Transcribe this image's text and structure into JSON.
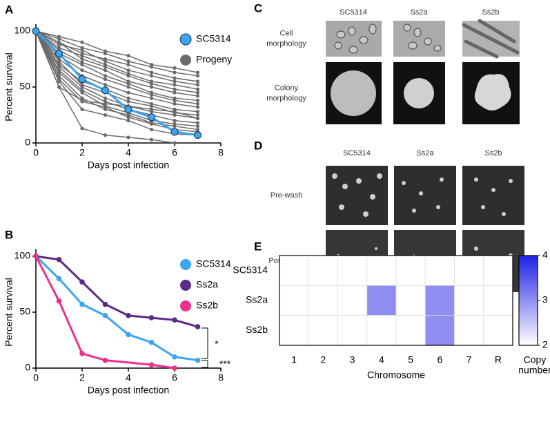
{
  "chart_data": [
    {
      "type": "line",
      "label": "A",
      "ylabel": "Percent survival",
      "xlabel": "Days post infection",
      "x": [
        0,
        1,
        2,
        3,
        4,
        5,
        6,
        7
      ],
      "xlim": [
        0,
        8
      ],
      "xticks": [
        0,
        2,
        4,
        6,
        8
      ],
      "ylim": [
        0,
        100
      ],
      "yticks": [
        0,
        50,
        100
      ],
      "series": [
        {
          "name": "Progeny",
          "color": "#6b6b6b",
          "values": [
            [
              100,
              95,
              90,
              82,
              78,
              70,
              67,
              63
            ],
            [
              100,
              93,
              85,
              80,
              73,
              68,
              63,
              60
            ],
            [
              100,
              90,
              80,
              75,
              70,
              63,
              58,
              55
            ],
            [
              100,
              88,
              83,
              73,
              65,
              60,
              55,
              52
            ],
            [
              100,
              85,
              78,
              70,
              62,
              55,
              52,
              48
            ],
            [
              100,
              90,
              75,
              68,
              60,
              53,
              48,
              45
            ],
            [
              100,
              83,
              72,
              65,
              55,
              50,
              45,
              42
            ],
            [
              100,
              80,
              70,
              60,
              53,
              45,
              40,
              38
            ],
            [
              100,
              78,
              65,
              57,
              50,
              43,
              38,
              35
            ],
            [
              100,
              75,
              60,
              52,
              45,
              40,
              35,
              32
            ],
            [
              100,
              70,
              55,
              48,
              40,
              35,
              30,
              28
            ],
            [
              100,
              73,
              52,
              45,
              37,
              33,
              27,
              25
            ],
            [
              100,
              68,
              50,
              40,
              33,
              28,
              25,
              22
            ],
            [
              100,
              65,
              47,
              37,
              30,
              25,
              20,
              18
            ],
            [
              100,
              63,
              45,
              33,
              27,
              20,
              17,
              15
            ],
            [
              100,
              60,
              40,
              30,
              25,
              18,
              15,
              12
            ],
            [
              100,
              57,
              37,
              32,
              23,
              17,
              12,
              10
            ],
            [
              100,
              50,
              38,
              35,
              33,
              30,
              28,
              22
            ],
            [
              100,
              55,
              30,
              25,
              20,
              12,
              8,
              7
            ],
            [
              100,
              50,
              13,
              7,
              5,
              3,
              0,
              null
            ]
          ]
        },
        {
          "name": "SC5314",
          "color": "#3da5ee",
          "values": [
            100,
            80,
            57,
            47,
            30,
            23,
            10,
            7
          ]
        }
      ]
    },
    {
      "type": "line",
      "label": "B",
      "ylabel": "Percent survival",
      "xlabel": "Days post infection",
      "xlim": [
        0,
        8
      ],
      "xticks": [
        0,
        2,
        4,
        6,
        8
      ],
      "ylim": [
        0,
        100
      ],
      "yticks": [
        0,
        50,
        100
      ],
      "annotations": [
        "*",
        "***"
      ],
      "series": [
        {
          "name": "SC5314",
          "color": "#3da5ee",
          "x": [
            0,
            1,
            2,
            3,
            4,
            5,
            6,
            7
          ],
          "values": [
            100,
            80,
            57,
            47,
            30,
            23,
            10,
            7
          ]
        },
        {
          "name": "Ss2a",
          "color": "#5b2a86",
          "x": [
            0,
            1,
            2,
            3,
            4,
            5,
            6,
            7
          ],
          "values": [
            100,
            97,
            77,
            57,
            47,
            45,
            43,
            37
          ]
        },
        {
          "name": "Ss2b",
          "color": "#ee2f8e",
          "x": [
            0,
            1,
            2,
            3,
            5,
            6
          ],
          "values": [
            100,
            60,
            13,
            7,
            3,
            0
          ]
        }
      ]
    },
    {
      "type": "heatmap",
      "label": "E",
      "xlabel": "Chromosome",
      "categories": [
        "1",
        "2",
        "3",
        "4",
        "5",
        "6",
        "7",
        "R"
      ],
      "rows": [
        "SC5314",
        "Ss2a",
        "Ss2b"
      ],
      "values": [
        [
          2,
          2,
          2,
          2,
          2,
          2,
          2,
          2
        ],
        [
          2,
          2,
          2,
          3,
          2,
          3,
          2,
          2
        ],
        [
          2,
          2,
          2,
          2,
          2,
          3,
          2,
          2
        ]
      ],
      "colors": [
        "#ffffff",
        "#1f1fe6"
      ],
      "zlim": [
        2,
        4
      ],
      "zticks": [
        2,
        3,
        4
      ],
      "colorbar_label": [
        "Copy",
        "number"
      ]
    }
  ],
  "panel_c": {
    "label": "C",
    "columns": [
      "SC5314",
      "Ss2a",
      "Ss2b"
    ],
    "rows": [
      [
        "Cell",
        "morphology"
      ],
      [
        "Colony",
        "morphology"
      ]
    ]
  },
  "panel_d": {
    "label": "D",
    "columns": [
      "SC5314",
      "Ss2a",
      "Ss2b"
    ],
    "rows": [
      "Pre-wash",
      "Post-wash"
    ]
  }
}
